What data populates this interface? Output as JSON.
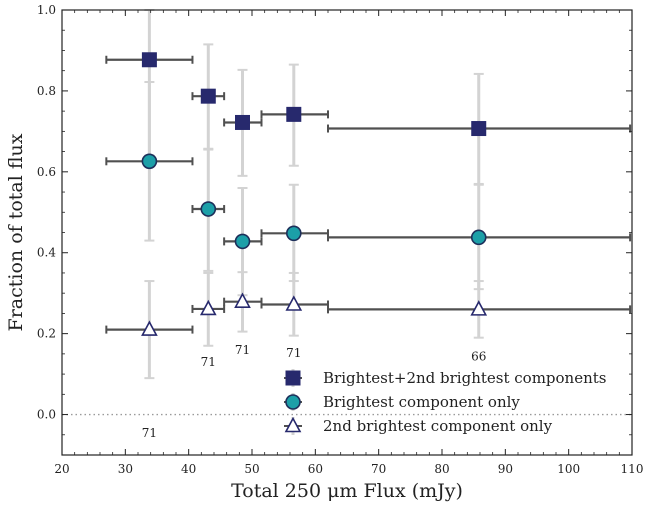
{
  "chart_data": {
    "type": "scatter",
    "xlabel": "Total 250 μm Flux (mJy)",
    "ylabel": "Fraction of total flux",
    "xlim": [
      20,
      110
    ],
    "ylim": [
      -0.1,
      1.0
    ],
    "xticks": [
      "20",
      "30",
      "40",
      "50",
      "60",
      "70",
      "80",
      "90",
      "100",
      "110"
    ],
    "yticks": [
      "0.0",
      "0.2",
      "0.4",
      "0.6",
      "0.8",
      "1.0"
    ],
    "reference_line": {
      "y": 0.0,
      "style": "dotted"
    },
    "legend_position": "lower-right",
    "bins": [
      {
        "x": 33.8,
        "x_low": 27.0,
        "x_high": 40.6,
        "count": "71",
        "count_y": -0.045
      },
      {
        "x": 43.1,
        "x_low": 40.6,
        "x_high": 45.6,
        "count": "71",
        "count_y": 0.13
      },
      {
        "x": 48.5,
        "x_low": 45.6,
        "x_high": 51.5,
        "count": "71",
        "count_y": 0.16
      },
      {
        "x": 56.6,
        "x_low": 51.5,
        "x_high": 62.0,
        "count": "71",
        "count_y": 0.152
      },
      {
        "x": 85.8,
        "x_low": 62.0,
        "x_high": 109.7,
        "count": "66",
        "count_y": 0.144
      }
    ],
    "series": [
      {
        "name": "Brightest+2nd brightest components",
        "marker": "square",
        "fill": "#27296d",
        "stroke": "#27296d",
        "y": [
          0.877,
          0.787,
          0.722,
          0.742,
          0.707
        ],
        "y_low": [
          0.64,
          0.655,
          0.59,
          0.615,
          0.57
        ],
        "y_high": [
          1.0,
          0.915,
          0.852,
          0.865,
          0.842
        ]
      },
      {
        "name": "Brightest component only",
        "marker": "circle",
        "fill": "#1c9fa8",
        "stroke": "#1d2f5a",
        "y": [
          0.626,
          0.508,
          0.428,
          0.448,
          0.438
        ],
        "y_low": [
          0.43,
          0.355,
          0.295,
          0.33,
          0.31
        ],
        "y_high": [
          0.822,
          0.657,
          0.56,
          0.568,
          0.568
        ]
      },
      {
        "name": "2nd brightest component only",
        "marker": "triangle",
        "fill": "#ffffff",
        "stroke": "#27296d",
        "y": [
          0.21,
          0.261,
          0.279,
          0.272,
          0.26
        ],
        "y_low": [
          0.09,
          0.17,
          0.205,
          0.195,
          0.19
        ],
        "y_high": [
          0.33,
          0.35,
          0.352,
          0.35,
          0.33
        ]
      }
    ],
    "colors": {
      "error_bar": "#d3d3d3",
      "x_error_bar": "#505050",
      "axis": "#222222"
    }
  }
}
